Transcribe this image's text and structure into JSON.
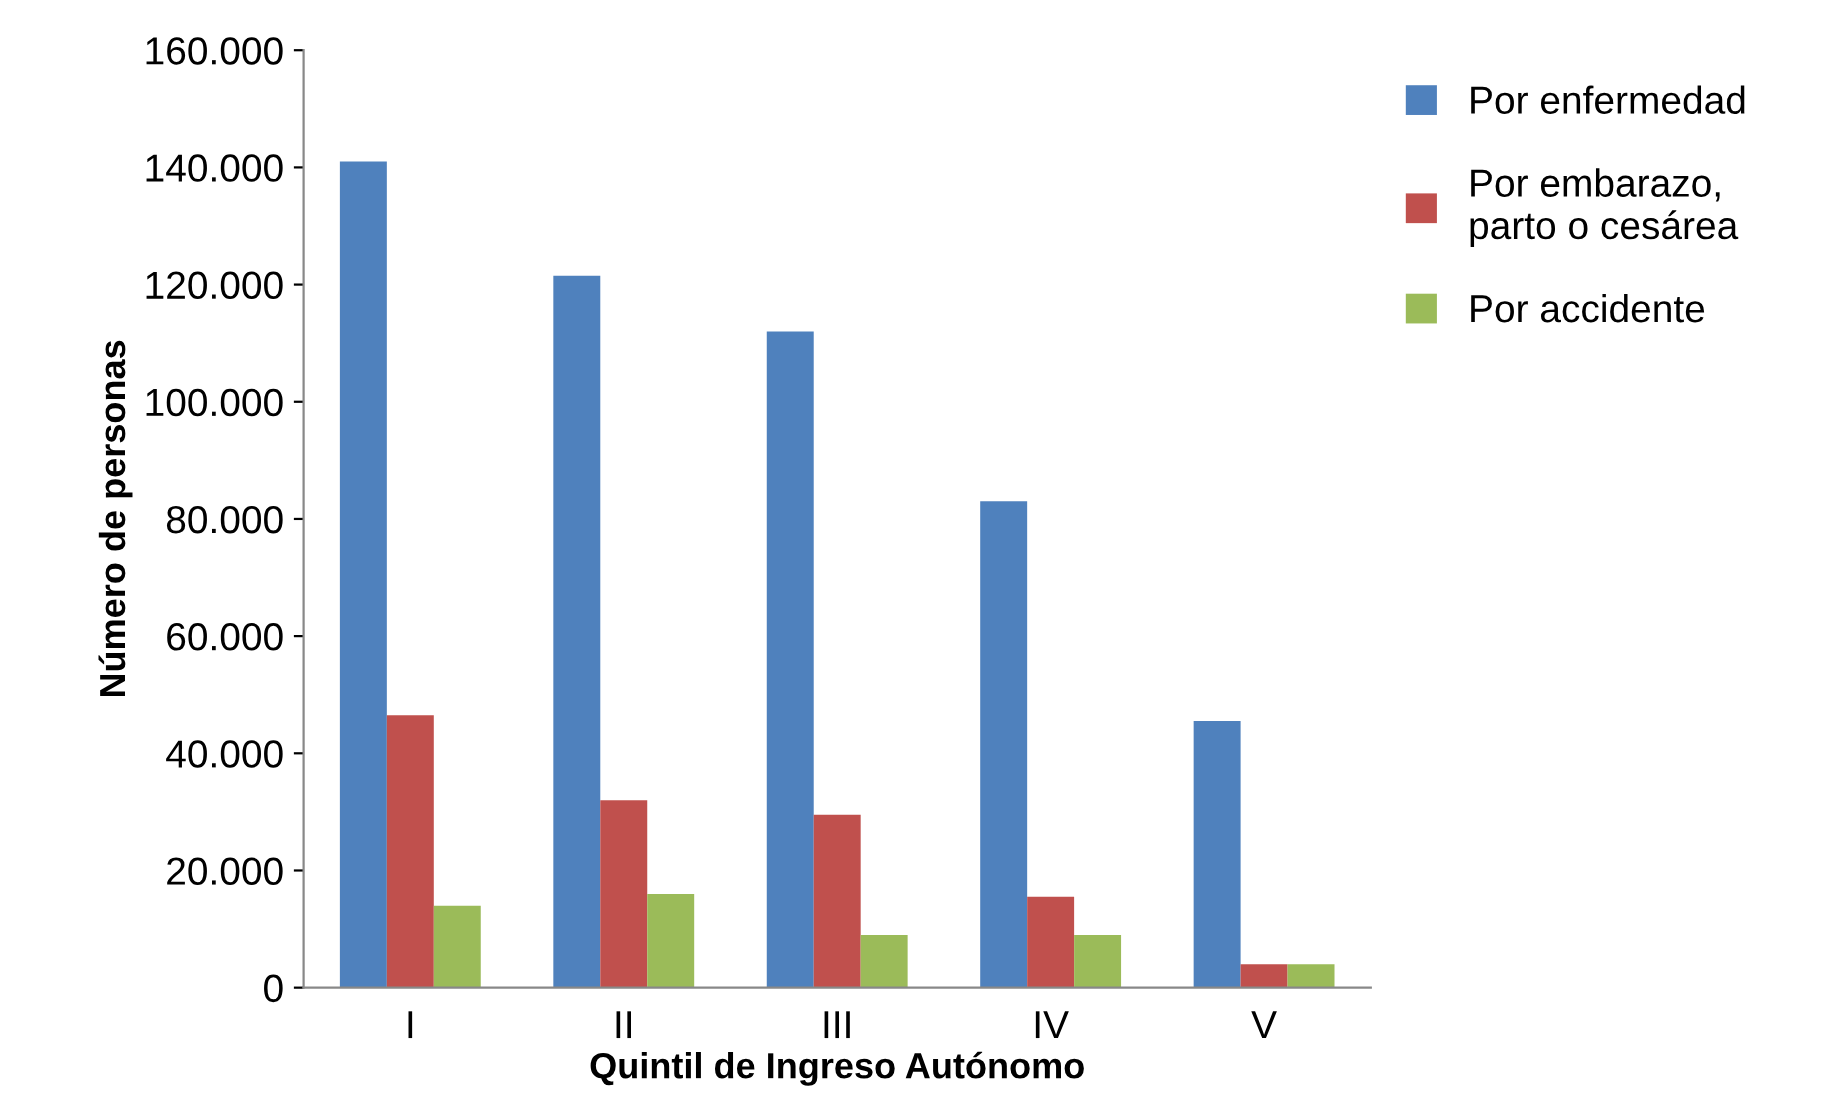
{
  "chart_data": {
    "type": "bar",
    "xlabel": "Quintil de Ingreso Autónomo",
    "ylabel": "Número de personas",
    "categories": [
      "I",
      "II",
      "III",
      "IV",
      "V"
    ],
    "series": [
      {
        "name": "Por enfermedad",
        "color": "#4f81bd",
        "values": [
          141000,
          121500,
          112000,
          83000,
          45500
        ]
      },
      {
        "name": "Por embarazo,\nparto o cesárea",
        "color": "#c0504d",
        "values": [
          46500,
          32000,
          29500,
          15500,
          4000
        ]
      },
      {
        "name": "Por accidente",
        "color": "#9bbb59",
        "values": [
          14000,
          16000,
          9000,
          9000,
          4000
        ]
      }
    ],
    "ylim": [
      0,
      160000
    ],
    "yticks": [
      {
        "value": 0,
        "label": "0"
      },
      {
        "value": 20000,
        "label": "20.000"
      },
      {
        "value": 40000,
        "label": "40.000"
      },
      {
        "value": 60000,
        "label": "60.000"
      },
      {
        "value": 80000,
        "label": "80.000"
      },
      {
        "value": 100000,
        "label": "100.000"
      },
      {
        "value": 120000,
        "label": "120.000"
      },
      {
        "value": 140000,
        "label": "140.000"
      },
      {
        "value": 160000,
        "label": "160.000"
      }
    ],
    "grid": false,
    "legend": "right"
  }
}
